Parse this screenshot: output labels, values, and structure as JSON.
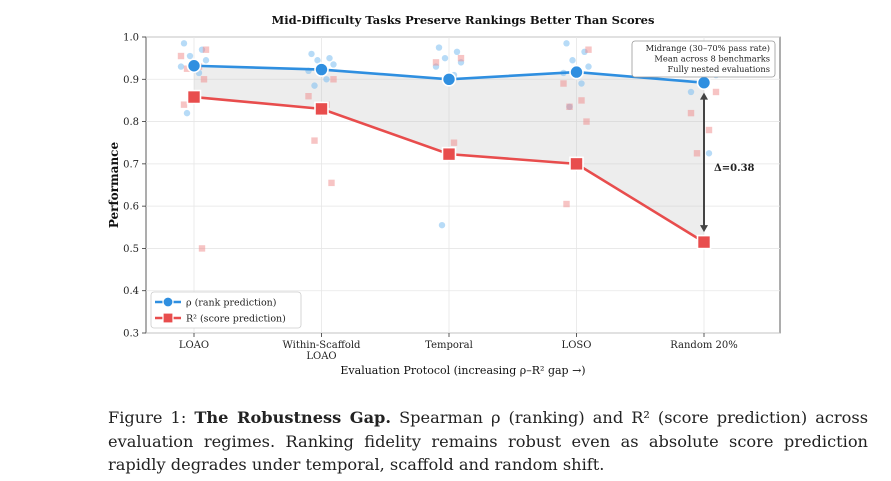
{
  "chart_data": {
    "type": "line",
    "title": "Mid-Difficulty Tasks Preserve Rankings Better Than Scores",
    "xlabel": "Evaluation Protocol (increasing ρ–R² gap →)",
    "ylabel": "Performance",
    "ylim": [
      0.3,
      1.0
    ],
    "yticks": [
      "0.3",
      "0.4",
      "0.5",
      "0.6",
      "0.7",
      "0.8",
      "0.9",
      "1.0"
    ],
    "categories": [
      "LOAO",
      "Within-Scaffold LOAO",
      "Temporal",
      "LOSO",
      "Random 20%"
    ],
    "category_lines": [
      [
        "LOAO"
      ],
      [
        "Within-Scaffold",
        "LOAO"
      ],
      [
        "Temporal"
      ],
      [
        "LOSO"
      ],
      [
        "Random 20%"
      ]
    ],
    "series": [
      {
        "name": "ρ (rank prediction)",
        "color": "#2f8fe0",
        "values": [
          0.932,
          0.923,
          0.9,
          0.917,
          0.892
        ]
      },
      {
        "name": "R² (score prediction)",
        "color": "#e84d4d",
        "values": [
          0.858,
          0.83,
          0.723,
          0.7,
          0.515
        ]
      }
    ],
    "rho_scatter": [
      [
        0.985,
        0.97,
        0.955,
        0.945,
        0.93,
        0.915,
        0.82
      ],
      [
        0.96,
        0.95,
        0.945,
        0.935,
        0.92,
        0.9,
        0.885
      ],
      [
        0.975,
        0.965,
        0.95,
        0.94,
        0.93,
        0.91,
        0.555
      ],
      [
        0.985,
        0.965,
        0.945,
        0.93,
        0.915,
        0.89,
        0.835
      ],
      [
        0.94,
        0.93,
        0.92,
        0.91,
        0.87,
        0.725
      ]
    ],
    "r2_scatter": [
      [
        0.97,
        0.955,
        0.93,
        0.925,
        0.9,
        0.84,
        0.5
      ],
      [
        0.9,
        0.86,
        0.84,
        0.755,
        0.655
      ],
      [
        0.95,
        0.94,
        0.75
      ],
      [
        0.97,
        0.89,
        0.85,
        0.835,
        0.8,
        0.605
      ],
      [
        0.87,
        0.82,
        0.78,
        0.725
      ]
    ],
    "gap_annotation": "Δ=0.38",
    "info_box": [
      "Midrange (30–70% pass rate)",
      "Mean across 8 benchmarks",
      "Fully nested evaluations"
    ],
    "legend_position": "bottom-left",
    "grid": true
  },
  "caption": {
    "label": "Figure 1:",
    "title": "The Robustness Gap.",
    "text": "Spearman ρ (ranking) and R² (score prediction) across evaluation regimes. Ranking fidelity remains robust even as absolute score prediction rapidly degrades under temporal, scaffold and random shift."
  }
}
